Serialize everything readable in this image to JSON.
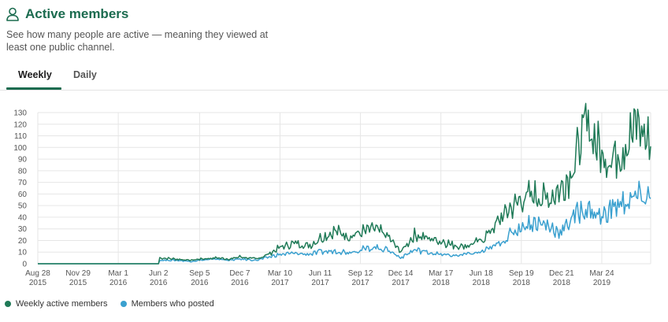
{
  "header": {
    "title": "Active members",
    "icon": "user-icon",
    "description": "See how many people are active — meaning they viewed at least one public channel."
  },
  "tabs": [
    {
      "label": "Weekly",
      "active": true
    },
    {
      "label": "Daily",
      "active": false
    }
  ],
  "colors": {
    "accent": "#1b6b4f",
    "weekly": "#1f7a57",
    "posted": "#3aa0cf",
    "grid": "#e6e6e6"
  },
  "chart_data": {
    "type": "line",
    "ylim": [
      0,
      130
    ],
    "yticks": [
      0,
      10,
      20,
      30,
      40,
      50,
      60,
      70,
      80,
      90,
      100,
      110,
      120,
      130
    ],
    "x_ticks": [
      {
        "month": "Aug 28",
        "year": "2015"
      },
      {
        "month": "Nov 29",
        "year": "2015"
      },
      {
        "month": "Mar 1",
        "year": "2016"
      },
      {
        "month": "Jun 2",
        "year": "2016"
      },
      {
        "month": "Sep 5",
        "year": "2016"
      },
      {
        "month": "Dec 7",
        "year": "2016"
      },
      {
        "month": "Mar 10",
        "year": "2017"
      },
      {
        "month": "Jun 11",
        "year": "2017"
      },
      {
        "month": "Sep 12",
        "year": "2017"
      },
      {
        "month": "Dec 14",
        "year": "2017"
      },
      {
        "month": "Mar 17",
        "year": "2018"
      },
      {
        "month": "Jun 18",
        "year": "2018"
      },
      {
        "month": "Sep 19",
        "year": "2018"
      },
      {
        "month": "Dec 21",
        "year": "2018"
      },
      {
        "month": "Mar 24",
        "year": "2019"
      }
    ],
    "x_gridlines": [
      "Aug 28 2015",
      "Mar 1 2016",
      "Sep 5 2016",
      "Mar 10 2017",
      "Sep 12 2017",
      "Mar 17 2018",
      "Sep 19 2018",
      "Mar 24 2019"
    ],
    "x_end": "Jul 2019",
    "grid": true,
    "legend_position": "bottom-left",
    "series": [
      {
        "name": "Weekly active members",
        "points": [
          [
            "Aug 28 2015",
            0
          ],
          [
            "Jun 2 2016",
            0
          ],
          [
            "Jun 5 2016",
            5
          ],
          [
            "Jul 2016",
            4
          ],
          [
            "Aug 2016",
            3
          ],
          [
            "Sep 5 2016",
            4
          ],
          [
            "Oct 2016",
            5
          ],
          [
            "Nov 2016",
            4
          ],
          [
            "Dec 7 2016",
            6
          ],
          [
            "Jan 2017",
            4
          ],
          [
            "Feb 2017",
            9
          ],
          [
            "Mar 10 2017",
            14
          ],
          [
            "Apr 2017",
            18
          ],
          [
            "May 2017",
            15
          ],
          [
            "Jun 11 2017",
            22
          ],
          [
            "Jul 2017",
            28
          ],
          [
            "Aug 2017",
            24
          ],
          [
            "Sep 12 2017",
            27
          ],
          [
            "Oct 2017",
            30
          ],
          [
            "Nov 2017",
            23
          ],
          [
            "Dec 14 2017",
            10
          ],
          [
            "Jan 2018",
            25
          ],
          [
            "Feb 2018",
            22
          ],
          [
            "Mar 17 2018",
            20
          ],
          [
            "Apr 2018",
            16
          ],
          [
            "May 2018",
            15
          ],
          [
            "Jun 18 2018",
            20
          ],
          [
            "Jul 2018",
            30
          ],
          [
            "Aug 2018",
            45
          ],
          [
            "Sep 19 2018",
            55
          ],
          [
            "Oct 2018",
            60
          ],
          [
            "Nov 2018",
            55
          ],
          [
            "Dec 21 2018",
            65
          ],
          [
            "Jan 2019",
            80
          ],
          [
            "Feb 2019",
            122
          ],
          [
            "Mar 24 2019",
            95
          ],
          [
            "Apr 2019",
            90
          ],
          [
            "May 2019",
            100
          ],
          [
            "Jun 2019",
            120
          ],
          [
            "Jul 2019",
            101
          ]
        ]
      },
      {
        "name": "Members who posted",
        "points": [
          [
            "Aug 28 2015",
            0
          ],
          [
            "Jun 2 2016",
            0
          ],
          [
            "Jun 5 2016",
            3
          ],
          [
            "Jul 2016",
            3
          ],
          [
            "Aug 2016",
            2
          ],
          [
            "Sep 5 2016",
            3
          ],
          [
            "Oct 2016",
            4
          ],
          [
            "Nov 2016",
            3
          ],
          [
            "Dec 7 2016",
            4
          ],
          [
            "Jan 2017",
            3
          ],
          [
            "Feb 2017",
            6
          ],
          [
            "Mar 10 2017",
            8
          ],
          [
            "Apr 2017",
            9
          ],
          [
            "May 2017",
            8
          ],
          [
            "Jun 11 2017",
            10
          ],
          [
            "Jul 2017",
            11
          ],
          [
            "Aug 2017",
            10
          ],
          [
            "Sep 12 2017",
            12
          ],
          [
            "Oct 2017",
            14
          ],
          [
            "Nov 2017",
            12
          ],
          [
            "Dec 14 2017",
            5
          ],
          [
            "Jan 2018",
            12
          ],
          [
            "Feb 2018",
            10
          ],
          [
            "Mar 17 2018",
            8
          ],
          [
            "Apr 2018",
            7
          ],
          [
            "May 2018",
            8
          ],
          [
            "Jun 18 2018",
            10
          ],
          [
            "Jul 2018",
            14
          ],
          [
            "Aug 2018",
            22
          ],
          [
            "Sep 19 2018",
            32
          ],
          [
            "Oct 2018",
            36
          ],
          [
            "Nov 2018",
            33
          ],
          [
            "Dec 21 2018",
            27
          ],
          [
            "Jan 2019",
            40
          ],
          [
            "Feb 2019",
            48
          ],
          [
            "Mar 24 2019",
            40
          ],
          [
            "Apr 2019",
            48
          ],
          [
            "May 2019",
            52
          ],
          [
            "Jun 2019",
            57
          ],
          [
            "Jul 2019",
            56
          ]
        ]
      }
    ]
  }
}
